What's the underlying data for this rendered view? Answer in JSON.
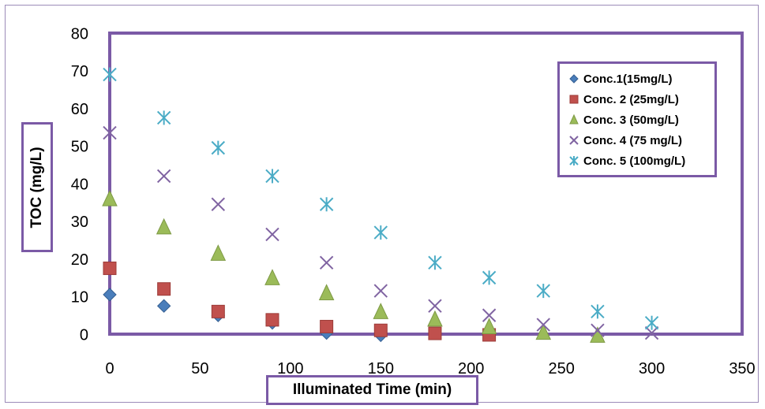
{
  "chart_data": {
    "type": "scatter",
    "title": "",
    "xlabel": "Illuminated Time (min)",
    "ylabel": "TOC (mg/L)",
    "xlim": [
      0,
      350
    ],
    "ylim": [
      0,
      80
    ],
    "xticks": [
      0,
      50,
      100,
      150,
      200,
      250,
      300,
      350
    ],
    "yticks": [
      0,
      10,
      20,
      30,
      40,
      50,
      60,
      70,
      80
    ],
    "grid": false,
    "legend_position": "top-right",
    "series": [
      {
        "name": "Conc.1(15mg/L)",
        "marker": "diamond",
        "color": "#4a7ebb",
        "x": [
          0,
          30,
          60,
          90,
          120,
          150
        ],
        "y": [
          10.5,
          7.5,
          5,
          3,
          0.3,
          -0.3
        ]
      },
      {
        "name": "Conc. 2 (25mg/L)",
        "marker": "square",
        "color": "#c0504d",
        "x": [
          0,
          30,
          60,
          90,
          120,
          150,
          180,
          210
        ],
        "y": [
          17.5,
          12,
          6,
          3.8,
          2,
          1,
          0.2,
          -0.2
        ]
      },
      {
        "name": "Conc. 3 (50mg/L)",
        "marker": "triangle",
        "color": "#9bbb59",
        "x": [
          0,
          30,
          60,
          90,
          120,
          150,
          180,
          210,
          240,
          270
        ],
        "y": [
          36,
          28.5,
          21.5,
          15,
          11,
          6,
          4,
          2,
          0.5,
          -0.3
        ]
      },
      {
        "name": "Conc. 4 (75 mg/L)",
        "marker": "x",
        "color": "#8064a2",
        "x": [
          0,
          30,
          60,
          90,
          120,
          150,
          180,
          210,
          240,
          270,
          300
        ],
        "y": [
          53.5,
          42,
          34.5,
          26.5,
          19,
          11.5,
          7.5,
          5,
          2.5,
          1,
          0.3
        ]
      },
      {
        "name": "Conc. 5 (100mg/L)",
        "marker": "star",
        "color": "#4bacc6",
        "x": [
          0,
          30,
          60,
          90,
          120,
          150,
          180,
          210,
          240,
          270,
          300
        ],
        "y": [
          69,
          57.5,
          49.5,
          42,
          34.5,
          27,
          19,
          15,
          11.5,
          6,
          3
        ]
      }
    ]
  }
}
